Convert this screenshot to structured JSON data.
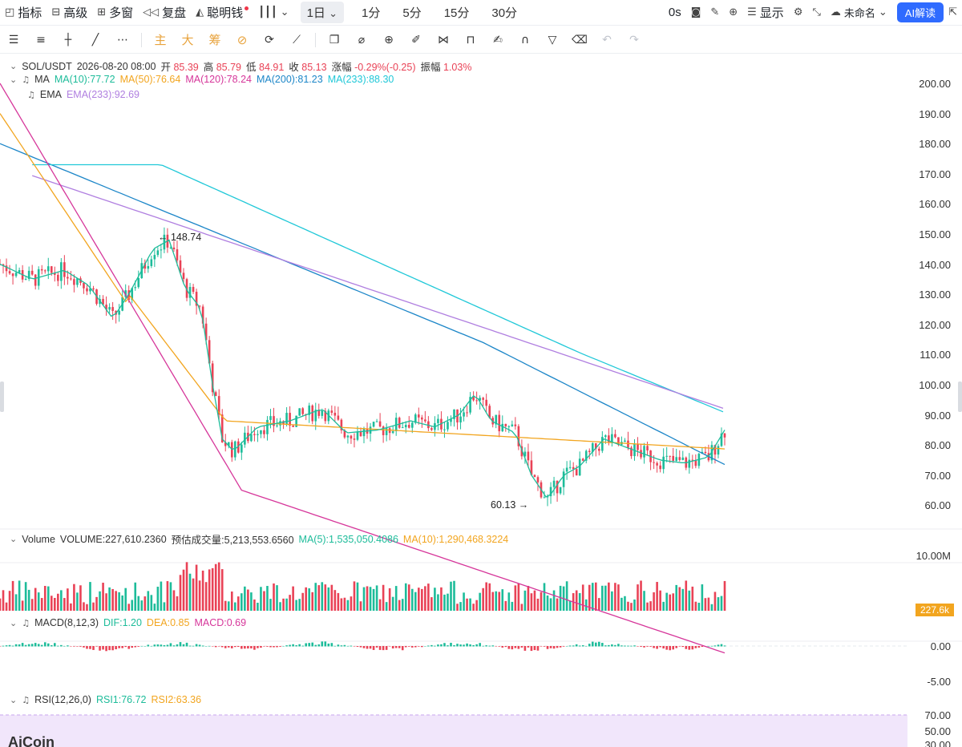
{
  "topbar": {
    "indicators_label": "指标",
    "advanced_label": "高级",
    "multi_window_label": "多窗",
    "replay_label": "复盘",
    "smart_money_label": "聪明钱",
    "selected_period": "1日",
    "periods": [
      "1分",
      "5分",
      "15分",
      "30分"
    ],
    "timer": "0s",
    "display_label": "显示",
    "layout_name": "未命名",
    "ai_label": "AI解读"
  },
  "drawbar": {
    "main_label": "主",
    "big_label": "大",
    "chip_label": "筹"
  },
  "legend": {
    "symbol": "SOL/USDT",
    "datetime": "2026-08-20 08:00",
    "open_label": "开",
    "open": "85.39",
    "high_label": "高",
    "high": "85.79",
    "low_label": "低",
    "low": "84.91",
    "close_label": "收",
    "close": "85.13",
    "change_label": "涨幅",
    "change": "-0.29%(-0.25)",
    "amplitude_label": "振幅",
    "amplitude": "1.03%",
    "ma_label": "MA",
    "ma10": "MA(10):77.72",
    "ma50": "MA(50):76.64",
    "ma120": "MA(120):78.24",
    "ma200": "MA(200):81.23",
    "ma233": "MA(233):88.30",
    "ema_label": "EMA",
    "ema233": "EMA(233):92.69",
    "volume_label": "Volume",
    "volume_value": "VOLUME:227,610.2360",
    "est_volume": "预估成交量:5,213,553.6560",
    "vol_ma5": "MA(5):1,535,050.4086",
    "vol_ma10": "MA(10):1,290,468.3224",
    "macd_label": "MACD(8,12,3)",
    "dif": "DIF:1.20",
    "dea": "DEA:0.85",
    "macd": "MACD:0.69",
    "rsi_label": "RSI(12,26,0)",
    "rsi1": "RSI1:76.72",
    "rsi2": "RSI2:63.36"
  },
  "annotations": {
    "high_mark": "148.74",
    "low_mark": "60.13"
  },
  "axes": {
    "price_ticks": [
      "200.00",
      "190.00",
      "180.00",
      "170.00",
      "160.00",
      "150.00",
      "140.00",
      "130.00",
      "120.00",
      "110.00",
      "100.00",
      "90.00",
      "80.00",
      "70.00",
      "60.00"
    ],
    "volume_tick": "10.00M",
    "volume_current": "227.6k",
    "macd_ticks": [
      "0.00",
      "-5.00"
    ],
    "rsi_ticks": [
      "70.00",
      "50.00",
      "30.00"
    ]
  },
  "watermark": "AiCoin",
  "colors": {
    "up": "#1dbc9a",
    "down": "#e94256",
    "ma10": "#1dbc9a",
    "ma50": "#f2a51f",
    "ma120": "#d6369a",
    "ma200": "#1c86c8",
    "ma233": "#20c8d8",
    "ema233": "#b07fe0",
    "price_tag": "#f2a51f",
    "rsi_band": "#f1e6fb"
  }
}
